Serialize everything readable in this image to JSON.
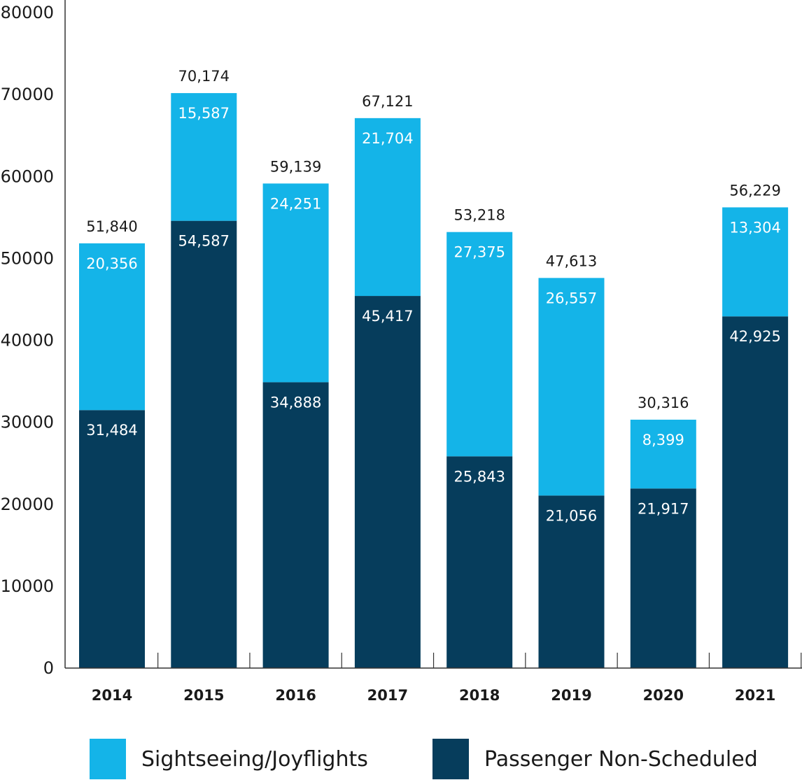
{
  "chart_data": {
    "type": "bar",
    "stacked": true,
    "categories": [
      "2014",
      "2015",
      "2016",
      "2017",
      "2018",
      "2019",
      "2020",
      "2021"
    ],
    "series": [
      {
        "name": "Passenger Non-Scheduled",
        "color": "#063d5c",
        "values": [
          31484,
          54587,
          34888,
          45417,
          25843,
          21056,
          21917,
          42925
        ],
        "labels": [
          "31,484",
          "54,587",
          "34,888",
          "45,417",
          "25,843",
          "21,056",
          "21,917",
          "42,925"
        ]
      },
      {
        "name": "Sightseeing/Joyflights",
        "color": "#14b4e8",
        "values": [
          20356,
          15587,
          24251,
          21704,
          27375,
          26557,
          8399,
          13304
        ],
        "labels": [
          "20,356",
          "15,587",
          "24,251",
          "21,704",
          "27,375",
          "26,557",
          "8,399",
          "13,304"
        ]
      }
    ],
    "totals": [
      51840,
      70174,
      59139,
      67121,
      53218,
      47613,
      30316,
      56229
    ],
    "total_labels": [
      "51,840",
      "70,174",
      "59,139",
      "67,121",
      "53,218",
      "47,613",
      "30,316",
      "56,229"
    ],
    "ylim": [
      0,
      80000
    ],
    "yticks": [
      "0",
      "10000",
      "20000",
      "30000",
      "40000",
      "50000",
      "60000",
      "70000",
      "80000"
    ],
    "grid": false,
    "legend_position": "bottom"
  },
  "legend": {
    "items": [
      {
        "label": "Sightseeing/Joyflights",
        "color": "#14b4e8"
      },
      {
        "label": "Passenger Non-Scheduled",
        "color": "#063d5c"
      }
    ]
  }
}
